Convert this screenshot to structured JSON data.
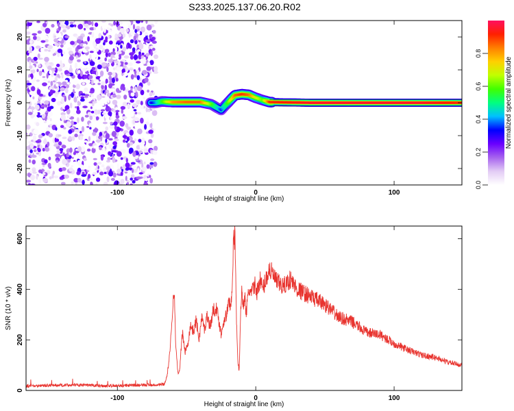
{
  "title": "S233.2025.137.06.20.R02",
  "chart_data": [
    {
      "type": "heatmap",
      "xlabel": "Height of straight line (km)",
      "ylabel": "Frequency (Hz)",
      "xlim": [
        -166,
        149
      ],
      "ylim": [
        -25,
        25
      ],
      "xticks": [
        -100,
        0,
        100
      ],
      "yticks": [
        -20,
        -10,
        0,
        10,
        20
      ],
      "colorbar": {
        "label": "Normalized spectral amplitude",
        "range": [
          0,
          1
        ],
        "ticks": [
          0.0,
          0.2,
          0.4,
          0.6,
          0.8
        ],
        "tick_labels": [
          "0.0",
          "0.2",
          "0.4",
          "0.6",
          "0.8"
        ],
        "colors": [
          "#ffffff",
          "#e3ccf5",
          "#a663ee",
          "#6a00ff",
          "#0000ff",
          "#00c0ff",
          "#00ff80",
          "#40ff00",
          "#c0ff00",
          "#ffd000",
          "#ff8000",
          "#ff2000",
          "#ff1060"
        ]
      },
      "noise_region": {
        "x_range": [
          -166,
          -72
        ],
        "y_range": [
          -25,
          25
        ],
        "amplitude_range": [
          0.0,
          0.2
        ]
      },
      "trace": {
        "x": [
          -76,
          -72,
          -68,
          -60,
          -50,
          -40,
          -32,
          -28,
          -25,
          -22,
          -18,
          -15,
          -10,
          -5,
          0,
          5,
          10,
          40,
          80,
          120,
          149
        ],
        "frequency": [
          0,
          0,
          0.4,
          0.2,
          0.2,
          0.2,
          -0.5,
          -1.5,
          -2.2,
          -0.8,
          1.0,
          2.3,
          2.6,
          2.4,
          1.5,
          0.8,
          0.2,
          0,
          0,
          0,
          0
        ],
        "amplitude": [
          0.3,
          0.4,
          0.55,
          0.8,
          0.85,
          0.85,
          0.6,
          0.45,
          0.35,
          0.5,
          0.7,
          0.85,
          0.9,
          0.85,
          0.7,
          0.6,
          0.9,
          0.95,
          0.95,
          0.95,
          0.9
        ]
      }
    },
    {
      "type": "line",
      "xlabel": "Height of straight line (km)",
      "ylabel": "SNR (10 * v/v)",
      "xlim": [
        -166,
        149
      ],
      "ylim": [
        0,
        650
      ],
      "xticks": [
        -100,
        0,
        100
      ],
      "yticks": [
        0,
        200,
        400,
        600
      ],
      "color": "#e8332e",
      "series": [
        {
          "x": [
            -166,
            -150,
            -130,
            -110,
            -90,
            -75,
            -66,
            -64,
            -62,
            -60,
            -59,
            -58,
            -57,
            -56,
            -55,
            -53,
            -51,
            -49,
            -47,
            -45,
            -43,
            -41,
            -39,
            -37,
            -35,
            -33,
            -31,
            -29,
            -27,
            -25,
            -23,
            -21,
            -19,
            -18,
            -17,
            -16,
            -15.5,
            -15,
            -14.5,
            -14,
            -13,
            -12,
            -11,
            -10,
            -9,
            -8,
            -7,
            -5,
            -3,
            -1,
            1,
            3,
            5,
            8,
            10,
            15,
            20,
            25,
            30,
            40,
            50,
            60,
            70,
            80,
            90,
            100,
            110,
            120,
            130,
            140,
            149
          ],
          "y": [
            18,
            20,
            22,
            18,
            20,
            22,
            25,
            60,
            150,
            330,
            420,
            200,
            120,
            60,
            80,
            230,
            150,
            190,
            260,
            230,
            280,
            200,
            290,
            240,
            300,
            250,
            310,
            330,
            290,
            220,
            280,
            300,
            360,
            320,
            430,
            600,
            560,
            640,
            450,
            300,
            120,
            75,
            290,
            400,
            330,
            380,
            300,
            400,
            380,
            420,
            390,
            440,
            400,
            450,
            480,
            430,
            410,
            440,
            400,
            370,
            340,
            290,
            270,
            230,
            220,
            185,
            160,
            140,
            130,
            110,
            100
          ]
        }
      ]
    }
  ]
}
